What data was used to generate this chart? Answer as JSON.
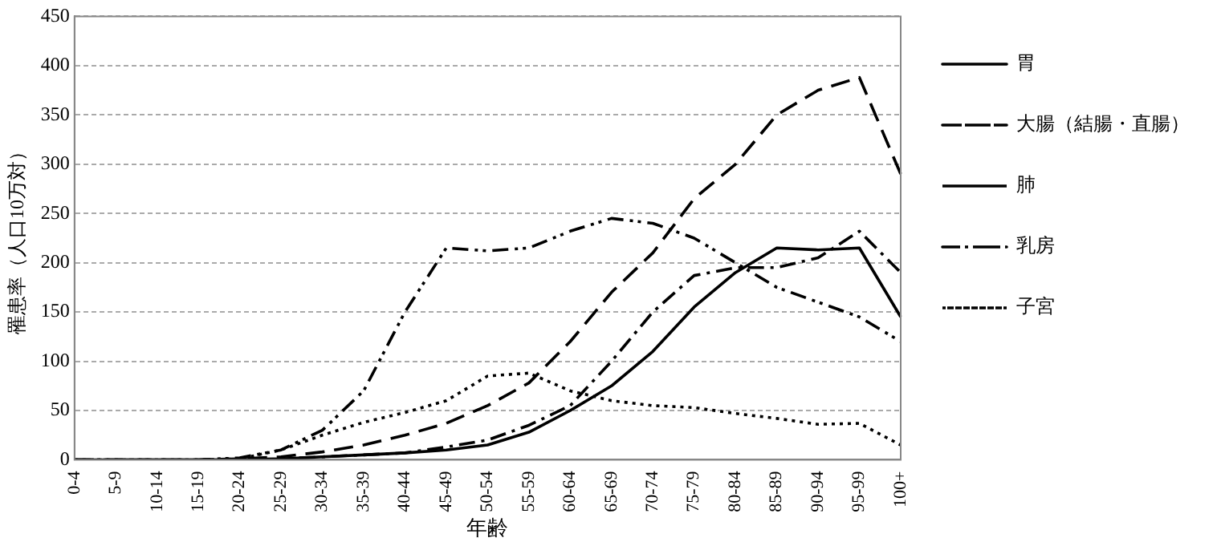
{
  "chart_data": {
    "type": "line",
    "xlabel": "年齢",
    "ylabel": "罹患率（人口10万対）",
    "categories": [
      "0-4",
      "5-9",
      "10-14",
      "15-19",
      "20-24",
      "25-29",
      "30-34",
      "35-39",
      "40-44",
      "45-49",
      "50-54",
      "55-59",
      "60-64",
      "65-69",
      "70-74",
      "75-79",
      "80-84",
      "85-89",
      "90-94",
      "95-99",
      "100+"
    ],
    "series": [
      {
        "name": "胃",
        "color": "#000000",
        "line_style": "solid",
        "values": [
          0,
          0,
          0,
          0,
          0,
          1,
          3,
          5,
          7,
          10,
          15,
          28,
          50,
          75,
          110,
          155,
          190,
          215,
          213,
          215,
          145
        ]
      },
      {
        "name": "大腸（結腸・直腸）",
        "color": "#000000",
        "line_style": "dashed",
        "values": [
          0,
          0,
          0,
          0,
          1,
          3,
          8,
          15,
          25,
          37,
          55,
          78,
          120,
          170,
          210,
          265,
          300,
          350,
          375,
          388,
          290
        ]
      },
      {
        "name": "肺",
        "color": "#000000",
        "line_style": "dashdot",
        "values": [
          0,
          0,
          0,
          0,
          0,
          1,
          3,
          5,
          7,
          13,
          20,
          35,
          55,
          100,
          150,
          187,
          195,
          195,
          205,
          232,
          190
        ]
      },
      {
        "name": "乳房",
        "color": "#000000",
        "line_style": "dashdotdot",
        "values": [
          0,
          0,
          0,
          0,
          2,
          10,
          30,
          70,
          150,
          215,
          212,
          215,
          232,
          245,
          240,
          225,
          200,
          175,
          160,
          145,
          120
        ]
      },
      {
        "name": "子宮",
        "color": "#000000",
        "line_style": "dotted",
        "values": [
          0,
          0,
          0,
          0,
          1,
          10,
          25,
          38,
          48,
          60,
          85,
          88,
          70,
          60,
          55,
          53,
          47,
          42,
          36,
          37,
          15
        ]
      }
    ],
    "ylim": [
      0,
      450
    ],
    "yticks": [
      0,
      50,
      100,
      150,
      200,
      250,
      300,
      350,
      400,
      450
    ],
    "grid": "y",
    "legend": "right",
    "marker": "none"
  }
}
